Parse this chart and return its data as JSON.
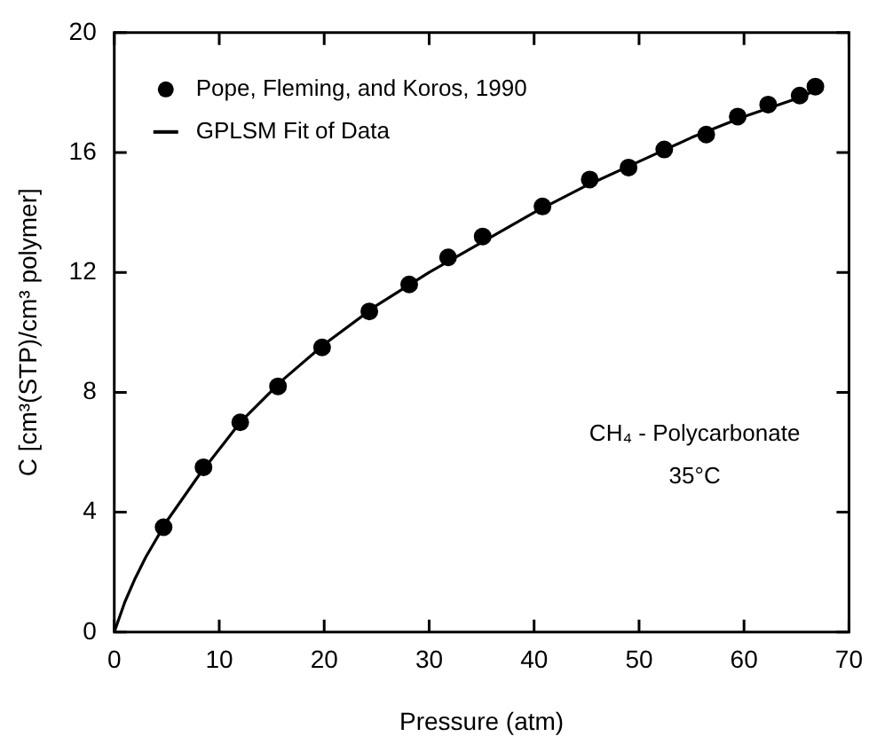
{
  "chart_data": {
    "type": "scatter",
    "xlabel": "Pressure (atm)",
    "ylabel": "C [cm³(STP)/cm³ polymer]",
    "xlim": [
      0,
      70
    ],
    "xticks": [
      0,
      10,
      20,
      30,
      40,
      50,
      60,
      70
    ],
    "ylim": [
      0,
      20
    ],
    "yticks": [
      0,
      4,
      8,
      12,
      16,
      20
    ],
    "grid": false,
    "legend": "top left",
    "marker": "circle",
    "annotations": [
      "CH₄ - Polycarbonate",
      "35°C"
    ],
    "series": [
      {
        "name": "Pope, Fleming, and Koros, 1990",
        "color": "#000000",
        "x": [
          4.7,
          8.5,
          12.0,
          15.6,
          19.8,
          24.3,
          28.1,
          31.8,
          35.1,
          40.8,
          45.3,
          49.0,
          52.4,
          56.4,
          59.4,
          62.3,
          65.3,
          66.8
        ],
        "values": [
          3.5,
          5.5,
          7.0,
          8.2,
          9.5,
          10.7,
          11.6,
          12.5,
          13.2,
          14.2,
          15.1,
          15.5,
          16.1,
          16.6,
          17.2,
          17.6,
          17.9,
          18.2
        ]
      },
      {
        "name": "GPLSM Fit of Data",
        "type": "line",
        "color": "#000000",
        "marker": "none",
        "line_style": "solid",
        "x": [
          0,
          1,
          2,
          3,
          5,
          8,
          12,
          16,
          20,
          25,
          30,
          35,
          40,
          45,
          50,
          55,
          60,
          65,
          67
        ],
        "values": [
          0,
          1.0,
          1.8,
          2.5,
          3.7,
          5.2,
          7.0,
          8.4,
          9.6,
          10.9,
          12.0,
          13.0,
          14.0,
          14.9,
          15.7,
          16.5,
          17.2,
          17.8,
          18.1
        ]
      }
    ]
  }
}
